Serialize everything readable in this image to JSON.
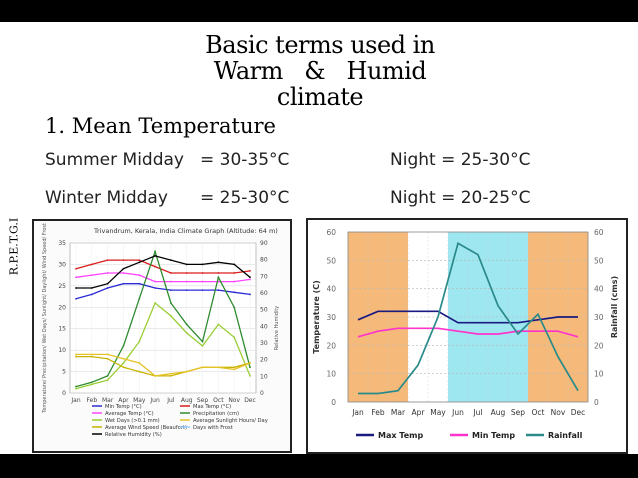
{
  "title_lines": [
    "Basic terms used in",
    "Warm   &   Humid",
    "climate"
  ],
  "heading": "1. Mean Temperature",
  "summer": {
    "label": "Summer Midday",
    "value": "= 30-35°C",
    "night": "Night = 25-30°C"
  },
  "winter": {
    "label": "Winter Midday",
    "value": "= 25-30°C",
    "night": "Night = 20-25°C"
  },
  "side_label": "R.P.E.T.G.I",
  "chart_data": [
    {
      "type": "line",
      "title": "Trivandrum, Kerala, India Climate Graph (Altitude: 64 m)",
      "categories": [
        "Jan",
        "Feb",
        "Mar",
        "Apr",
        "May",
        "Jun",
        "Jul",
        "Aug",
        "Sep",
        "Oct",
        "Nov",
        "Dec"
      ],
      "ylabel_left": "Temperature/ Precipitation/ Wet Days/ Sunlight/ Daylight/ Wind Speed/ Frost",
      "ylabel_right": "Relative Humidity",
      "y_left_ticks": [
        "0",
        "5",
        "10",
        "15",
        "20",
        "25",
        "30",
        "35"
      ],
      "y_right_ticks": [
        "0",
        "10",
        "20",
        "30",
        "40",
        "50",
        "60",
        "70",
        "80",
        "90"
      ],
      "ylim_left": [
        0,
        35
      ],
      "ylim_right": [
        0,
        90
      ],
      "series": [
        {
          "name": "Min Temp (°C)",
          "color": "#2b2bd6",
          "axis": "left",
          "values": [
            22,
            23,
            24.5,
            25.5,
            25.5,
            24.5,
            24,
            24,
            24,
            24,
            23.5,
            23
          ]
        },
        {
          "name": "Max Temp (°C)",
          "color": "#d91c1c",
          "axis": "left",
          "values": [
            29,
            30,
            31,
            31,
            31,
            29.5,
            28,
            28,
            28,
            28,
            28,
            28.5
          ]
        },
        {
          "name": "Average Temp (°C)",
          "color": "#ff44ff",
          "axis": "left",
          "values": [
            27,
            27.5,
            28,
            28,
            27.5,
            26,
            26,
            26,
            26,
            26,
            26,
            26.5
          ]
        },
        {
          "name": "Precipitation (cm)",
          "color": "#2e8b2e",
          "axis": "left",
          "values": [
            1.5,
            2.5,
            4,
            11,
            22,
            33,
            21,
            16,
            12,
            27,
            20,
            6
          ]
        },
        {
          "name": "Wet Days (>0.1 mm)",
          "color": "#9acd32",
          "axis": "left",
          "values": [
            1,
            2,
            3,
            7,
            12,
            21,
            18,
            14,
            11,
            16,
            13,
            4
          ]
        },
        {
          "name": "Average Wind Speed (Beaufort)",
          "color": "#c8b400",
          "axis": "left",
          "values": [
            8.5,
            8.5,
            8,
            6,
            5,
            4,
            4,
            5,
            6,
            6,
            6,
            7
          ]
        },
        {
          "name": "Average Sunlight Hours/ Day",
          "color": "#e6c229",
          "axis": "left",
          "values": [
            9,
            9,
            9,
            8,
            7,
            4,
            4.5,
            5,
            6,
            6,
            5.5,
            7
          ]
        },
        {
          "name": "Relative Humidity (%)",
          "color": "#000000",
          "axis": "left",
          "values": [
            24.5,
            24.5,
            25.5,
            29,
            30.5,
            32,
            31,
            30,
            30,
            30.5,
            30,
            27
          ]
        }
      ],
      "legend": [
        "Min Temp (°C)",
        "Max Temp (°C)",
        "Average Temp (°C)",
        "Precipitation (cm)",
        "Wet Days (>0.1 mm)",
        "Average Sunlight Hours/ Day",
        "Average Wind Speed (Beaufort)",
        "Days with Frost",
        "Relative Humidity (%)"
      ],
      "legend_colors": [
        "#2b2bd6",
        "#d91c1c",
        "#ff44ff",
        "#2e8b2e",
        "#9acd32",
        "#e6c229",
        "#c8b400",
        "#99ccff",
        "#000000"
      ]
    },
    {
      "type": "line",
      "categories": [
        "Jan",
        "Feb",
        "Mar",
        "Apr",
        "May",
        "Jun",
        "Jul",
        "Aug",
        "Sep",
        "Oct",
        "Nov",
        "Dec"
      ],
      "ylabel_left": "Temperature (C)",
      "ylabel_right": "Rainfall (cms)",
      "ylim": [
        0,
        60
      ],
      "y_ticks": [
        "0",
        "10",
        "20",
        "30",
        "40",
        "50",
        "60"
      ],
      "bands": [
        {
          "from": "Jan",
          "to": "Mar",
          "color": "#f5b97a"
        },
        {
          "from": "Jun",
          "to": "Sep",
          "color": "#9ee6f0"
        },
        {
          "from": "Oct",
          "to": "Dec",
          "color": "#f5b97a"
        }
      ],
      "series": [
        {
          "name": "Max Temp",
          "color": "#1a1a80",
          "values": [
            29,
            32,
            32,
            32,
            32,
            28,
            28,
            28,
            28,
            29,
            30,
            30
          ]
        },
        {
          "name": "Min Temp",
          "color": "#ff33cc",
          "values": [
            23,
            25,
            26,
            26,
            26,
            25,
            24,
            24,
            25,
            25,
            25,
            23
          ]
        },
        {
          "name": "Rainfall",
          "color": "#2a8a8a",
          "values": [
            3,
            3,
            4,
            13,
            30,
            56,
            52,
            34,
            24,
            31,
            16,
            4
          ]
        }
      ]
    }
  ]
}
